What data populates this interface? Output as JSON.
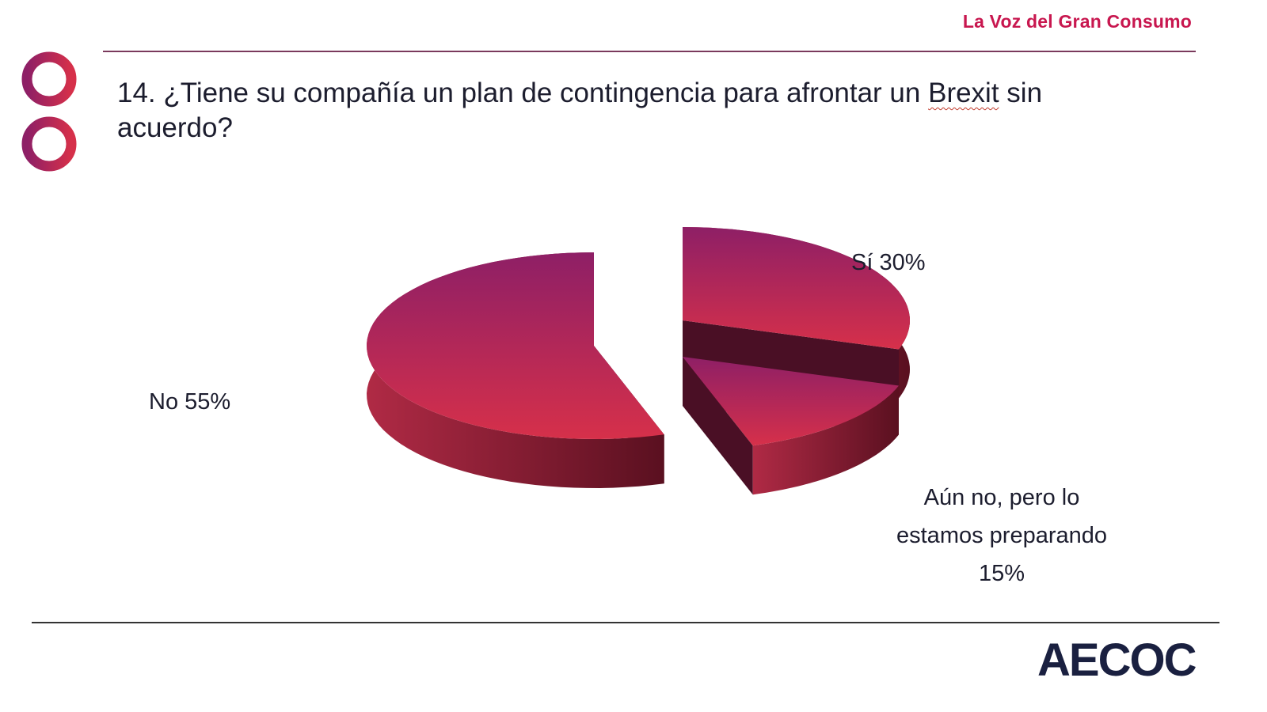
{
  "header": {
    "brand": "La Voz del Gran Consumo"
  },
  "question": {
    "prefix": "14. ¿Tiene su compañía un plan de contingencia para afrontar un ",
    "underlined": "Brexit",
    "suffix": " sin acuerdo?"
  },
  "footer": {
    "logo": "AECOC"
  },
  "colors": {
    "brand": "#c8174f",
    "slice_top_light": "#d6304a",
    "slice_top_dark": "#8e1f66",
    "slice_side": "#5a1020",
    "text": "#1c1d2e"
  },
  "chart_data": {
    "type": "pie",
    "style": "3d-exploded",
    "title": "14. ¿Tiene su compañía un plan de contingencia para afrontar un Brexit sin acuerdo?",
    "categories": [
      "Sí",
      "Aún no, pero lo estamos preparando",
      "No"
    ],
    "values": [
      30,
      15,
      55
    ],
    "unit": "%",
    "labels": [
      "Sí 30%",
      "Aún no, pero lo estamos preparando 15%",
      "No 55%"
    ],
    "legend": "none"
  }
}
